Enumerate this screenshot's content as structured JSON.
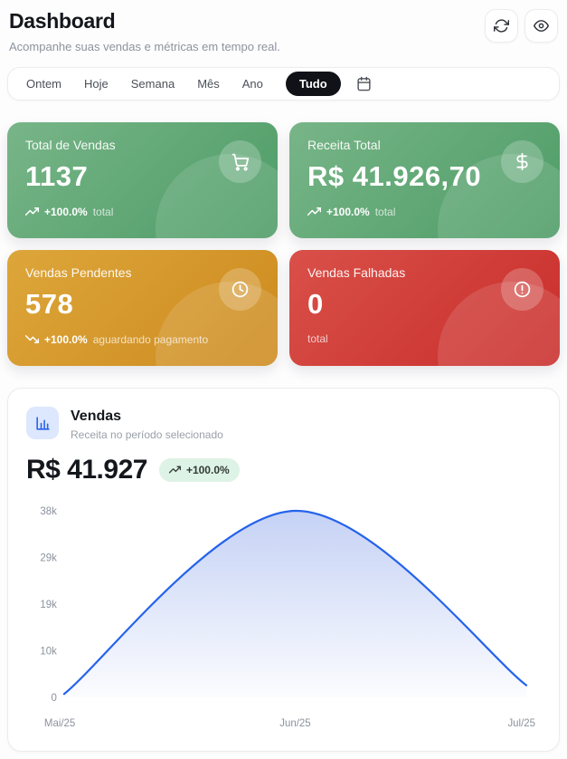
{
  "header": {
    "title": "Dashboard",
    "subtitle": "Acompanhe suas vendas e métricas em tempo real.",
    "action_icons": [
      "refresh-icon",
      "eye-icon"
    ]
  },
  "filters": {
    "items": [
      "Ontem",
      "Hoje",
      "Semana",
      "Mês",
      "Ano",
      "Tudo"
    ],
    "active": "Tudo",
    "calendar_icon": "calendar-icon"
  },
  "metrics": {
    "cards": [
      {
        "title": "Total de Vendas",
        "value": "1137",
        "trend": "+100.0%",
        "trend_direction": "up",
        "note": "total",
        "icon": "shopping-cart-icon",
        "color": "#5aa571"
      },
      {
        "title": "Receita Total",
        "value": "R$ 41.926,70",
        "trend": "+100.0%",
        "trend_direction": "up",
        "note": "total",
        "icon": "dollar-icon",
        "color": "#5aa571"
      },
      {
        "title": "Vendas Pendentes",
        "value": "578",
        "trend": "+100.0%",
        "trend_direction": "down",
        "note": "aguardando pagamento",
        "icon": "clock-icon",
        "color": "#d59a2c"
      },
      {
        "title": "Vendas Falhadas",
        "value": "0",
        "trend": "",
        "trend_direction": "none",
        "note": "total",
        "icon": "alert-circle-icon",
        "color": "#d23a33"
      }
    ]
  },
  "sales_panel": {
    "icon": "bar-chart-icon",
    "title": "Vendas",
    "subtitle": "Receita no período selecionado",
    "total": "R$ 41.927",
    "badge": "+100.0%",
    "badge_color": "#ddf3e5"
  },
  "chart_data": {
    "type": "area",
    "title": "Vendas",
    "x": [
      "Mai/25",
      "Jun/25",
      "Jul/25"
    ],
    "values": [
      700,
      38400,
      2500
    ],
    "ylim": [
      0,
      38400
    ],
    "yticks": {
      "values": [
        0,
        9600,
        19200,
        28800,
        38400
      ],
      "labels": [
        "0",
        "10k",
        "19k",
        "29k",
        "38k"
      ]
    },
    "xlabel": "",
    "ylabel": "",
    "grid": false,
    "legend": false,
    "line_color": "#2563eb",
    "fill_color": "#4a72e0"
  }
}
